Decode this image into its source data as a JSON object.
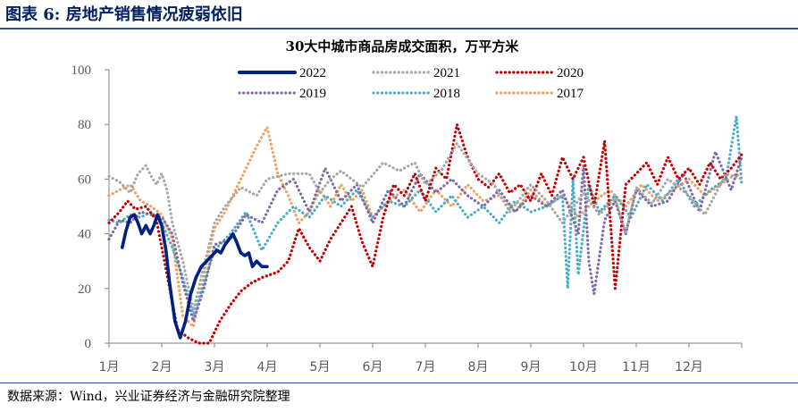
{
  "figure": {
    "label": "图表 6:",
    "title": "房地产销售情况疲弱依旧",
    "source": "数据来源：Wind，兴业证券经济与金融研究院整理"
  },
  "chart_data": {
    "type": "line",
    "title": "30大中城市商品房成交面积，万平方米",
    "xlabel": "",
    "ylabel": "",
    "ylim": [
      0,
      100
    ],
    "yticks": [
      0,
      20,
      40,
      60,
      80,
      100
    ],
    "xlim": [
      0,
      12
    ],
    "xtick_labels": [
      "1月",
      "2月",
      "3月",
      "4月",
      "5月",
      "6月",
      "7月",
      "8月",
      "9月",
      "10月",
      "11月",
      "12月"
    ],
    "grid": false,
    "legend_position": "top",
    "series": [
      {
        "name": "2022",
        "color": "#002080",
        "style": "solid",
        "x": [
          0.25,
          0.32,
          0.4,
          0.48,
          0.55,
          0.62,
          0.7,
          0.78,
          0.85,
          0.92,
          1.0,
          1.08,
          1.15,
          1.25,
          1.35,
          1.45,
          1.55,
          1.65,
          1.75,
          1.85,
          1.95,
          2.05,
          2.12,
          2.2,
          2.28,
          2.35,
          2.42,
          2.5,
          2.58,
          2.65,
          2.72,
          2.8,
          2.9,
          3.0
        ],
        "values": [
          35,
          41,
          46,
          47,
          44,
          40,
          43,
          40,
          43,
          47,
          43,
          34,
          22,
          8,
          2,
          8,
          18,
          24,
          28,
          30,
          32,
          34,
          33,
          36,
          38,
          40,
          37,
          33,
          32,
          33,
          28,
          30,
          28,
          28
        ]
      },
      {
        "name": "2021",
        "color": "#a6a6a6",
        "style": "dotted",
        "x": [
          0.0,
          0.2,
          0.4,
          0.55,
          0.7,
          0.8,
          0.9,
          1.0,
          1.1,
          1.2,
          1.4,
          1.6,
          1.8,
          2.0,
          2.2,
          2.5,
          2.8,
          3.0,
          3.4,
          3.8,
          4.0,
          4.2,
          4.4,
          4.8,
          5.2,
          5.5,
          5.8,
          6.0,
          6.3,
          6.6,
          7.0,
          7.3,
          7.6,
          8.0,
          8.3,
          8.6,
          9.0,
          9.3,
          9.6,
          9.8,
          10.0,
          10.3,
          10.6,
          11.0,
          11.3,
          11.7,
          12.0
        ],
        "values": [
          61,
          59,
          55,
          62,
          65,
          61,
          58,
          62,
          56,
          44,
          30,
          12,
          28,
          44,
          50,
          57,
          54,
          60,
          62,
          62,
          55,
          60,
          63,
          57,
          66,
          63,
          66,
          58,
          63,
          73,
          62,
          58,
          48,
          58,
          52,
          44,
          55,
          47,
          53,
          40,
          57,
          51,
          60,
          54,
          47,
          62,
          60
        ]
      },
      {
        "name": "2020",
        "color": "#c00000",
        "style": "dotted",
        "x": [
          0.0,
          0.2,
          0.35,
          0.5,
          0.7,
          0.9,
          1.1,
          1.3,
          1.5,
          1.7,
          1.9,
          2.1,
          2.3,
          2.5,
          2.7,
          2.9,
          3.2,
          3.4,
          3.6,
          3.8,
          4.0,
          4.2,
          4.4,
          4.6,
          4.8,
          5.0,
          5.2,
          5.4,
          5.6,
          5.8,
          6.0,
          6.2,
          6.4,
          6.6,
          6.8,
          7.0,
          7.2,
          7.4,
          7.6,
          7.8,
          8.0,
          8.2,
          8.4,
          8.6,
          8.8,
          9.0,
          9.2,
          9.4,
          9.6,
          9.8,
          10.0,
          10.2,
          10.4,
          10.6,
          10.8,
          11.0,
          11.2,
          11.4,
          11.6,
          11.8,
          12.0
        ],
        "values": [
          44,
          48,
          52,
          49,
          50,
          45,
          25,
          5,
          2,
          0,
          0,
          8,
          14,
          19,
          22,
          24,
          26,
          30,
          42,
          35,
          30,
          38,
          44,
          50,
          37,
          28,
          46,
          58,
          54,
          62,
          52,
          64,
          60,
          80,
          68,
          60,
          57,
          62,
          55,
          58,
          52,
          62,
          54,
          68,
          60,
          68,
          50,
          74,
          20,
          58,
          62,
          66,
          58,
          68,
          60,
          64,
          58,
          66,
          60,
          64,
          69
        ]
      },
      {
        "name": "2019",
        "color": "#7f6aa6",
        "style": "dotted",
        "x": [
          0.0,
          0.2,
          0.4,
          0.6,
          0.8,
          1.0,
          1.2,
          1.4,
          1.6,
          1.8,
          2.0,
          2.3,
          2.6,
          2.9,
          3.2,
          3.5,
          3.8,
          4.1,
          4.4,
          4.7,
          5.0,
          5.3,
          5.6,
          5.9,
          6.2,
          6.5,
          6.8,
          7.1,
          7.4,
          7.7,
          8.0,
          8.3,
          8.6,
          8.9,
          9.0,
          9.1,
          9.2,
          9.4,
          9.6,
          9.8,
          10.0,
          10.3,
          10.6,
          10.9,
          11.2,
          11.5,
          11.8,
          12.0
        ],
        "values": [
          38,
          45,
          44,
          48,
          47,
          46,
          40,
          22,
          8,
          20,
          36,
          38,
          47,
          44,
          56,
          60,
          48,
          64,
          52,
          58,
          44,
          56,
          50,
          62,
          55,
          60,
          54,
          50,
          56,
          48,
          54,
          50,
          56,
          40,
          65,
          30,
          18,
          45,
          52,
          40,
          56,
          50,
          52,
          62,
          48,
          70,
          56,
          68
        ]
      },
      {
        "name": "2018",
        "color": "#4bacc6",
        "style": "dotted",
        "x": [
          0.0,
          0.2,
          0.4,
          0.6,
          0.8,
          1.0,
          1.2,
          1.4,
          1.6,
          1.8,
          2.0,
          2.3,
          2.6,
          2.9,
          3.2,
          3.5,
          3.8,
          4.1,
          4.4,
          4.7,
          5.0,
          5.3,
          5.6,
          5.9,
          6.2,
          6.5,
          6.8,
          7.1,
          7.4,
          7.7,
          8.0,
          8.3,
          8.6,
          8.7,
          8.8,
          8.9,
          9.1,
          9.3,
          9.6,
          9.9,
          10.2,
          10.5,
          10.8,
          11.1,
          11.4,
          11.7,
          11.9,
          12.0
        ],
        "values": [
          45,
          44,
          47,
          46,
          48,
          44,
          35,
          24,
          10,
          22,
          34,
          40,
          48,
          34,
          44,
          50,
          46,
          54,
          50,
          56,
          46,
          52,
          50,
          56,
          48,
          54,
          46,
          50,
          44,
          52,
          48,
          50,
          54,
          20,
          60,
          25,
          58,
          48,
          54,
          46,
          58,
          52,
          60,
          50,
          56,
          60,
          83,
          58
        ]
      },
      {
        "name": "2017",
        "color": "#f0a060",
        "style": "dotted",
        "x": [
          0.0,
          0.2,
          0.4,
          0.6,
          0.8,
          1.0,
          1.2,
          1.4,
          1.6,
          1.8,
          2.0,
          2.2,
          2.4,
          2.6,
          2.8,
          3.0,
          3.2,
          3.4,
          3.6,
          3.8,
          4.0,
          4.2,
          4.4,
          4.6,
          4.8,
          5.0,
          5.3,
          5.6,
          5.9,
          6.2,
          6.5,
          6.8,
          7.1,
          7.4,
          7.7,
          8.0,
          8.3,
          8.6,
          8.9,
          9.2,
          9.5,
          9.8,
          10.1,
          10.4,
          10.7,
          11.0,
          11.3,
          11.6,
          11.9,
          12.0
        ],
        "values": [
          54,
          56,
          58,
          52,
          50,
          47,
          38,
          10,
          6,
          25,
          42,
          48,
          56,
          64,
          72,
          79,
          62,
          54,
          44,
          48,
          56,
          50,
          58,
          52,
          56,
          46,
          52,
          56,
          48,
          56,
          50,
          58,
          52,
          54,
          48,
          56,
          50,
          54,
          46,
          52,
          56,
          50,
          58,
          52,
          56,
          60,
          54,
          58,
          62,
          60
        ]
      }
    ]
  }
}
